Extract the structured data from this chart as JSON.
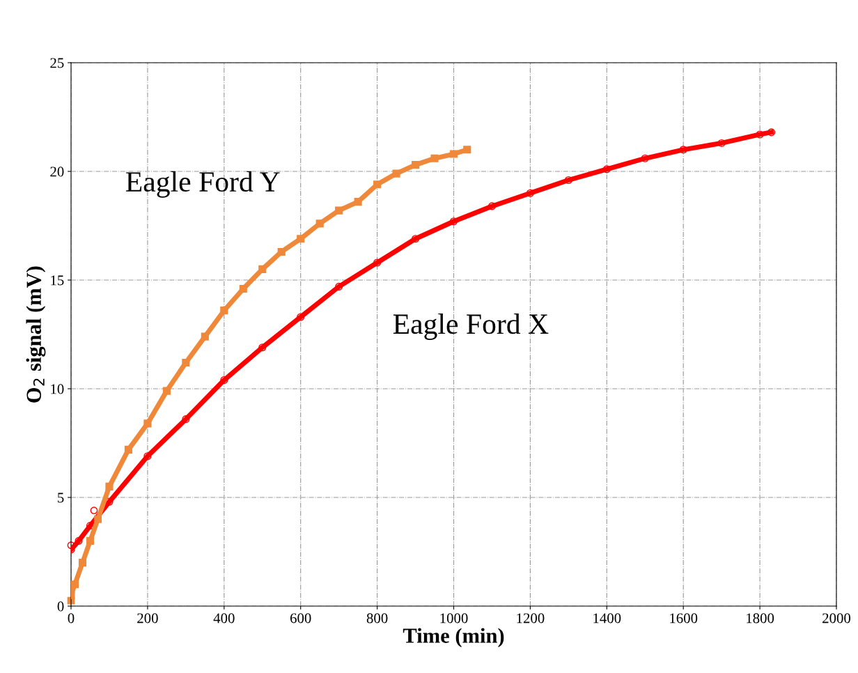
{
  "chart_data": {
    "type": "line",
    "xlabel": "Time (min)",
    "ylabel": "O$_{2}$ signal (mV)",
    "xlim": [
      0,
      2000
    ],
    "xticks": [
      0,
      200,
      400,
      600,
      800,
      1000,
      1200,
      1400,
      1600,
      1800,
      2000
    ],
    "ylim": [
      0,
      25
    ],
    "yticks": [
      0,
      5,
      10,
      15,
      20,
      25
    ],
    "grid": true,
    "line_style": "solid",
    "series": [
      {
        "name": "Eagle Ford Y",
        "color": "#f0883a",
        "marker": "square",
        "x": [
          0,
          10,
          30,
          50,
          70,
          100,
          150,
          200,
          250,
          300,
          350,
          400,
          450,
          500,
          550,
          600,
          650,
          700,
          750,
          800,
          850,
          900,
          950,
          1000,
          1035
        ],
        "values": [
          0.5,
          1,
          2,
          3,
          4,
          5.5,
          7.2,
          8.4,
          9.9,
          11.2,
          12.4,
          13.6,
          14.6,
          15.5,
          16.3,
          16.9,
          17.6,
          18.2,
          18.6,
          19.4,
          19.9,
          20.3,
          20.6,
          20.8,
          21
        ]
      },
      {
        "color": "#f0883a",
        "type": "scatter",
        "marker": "square",
        "x": [
          0
        ],
        "values": [
          0.25
        ]
      },
      {
        "name": "Eagle Ford X",
        "color": "#ff0000",
        "marker": "circle",
        "x": [
          0,
          20,
          50,
          100,
          200,
          300,
          400,
          500,
          600,
          700,
          800,
          900,
          1000,
          1100,
          1200,
          1300,
          1400,
          1500,
          1600,
          1700,
          1800,
          1830
        ],
        "values": [
          2.6,
          3,
          3.7,
          4.8,
          6.9,
          8.6,
          10.4,
          11.9,
          13.3,
          14.7,
          15.8,
          16.9,
          17.7,
          18.4,
          19,
          19.6,
          20.1,
          20.6,
          21,
          21.3,
          21.7,
          21.8
        ]
      },
      {
        "color": "#ff0000",
        "type": "scatter",
        "marker": "circle",
        "x": [
          0,
          60
        ],
        "values": [
          2.8,
          4.4
        ]
      }
    ]
  }
}
